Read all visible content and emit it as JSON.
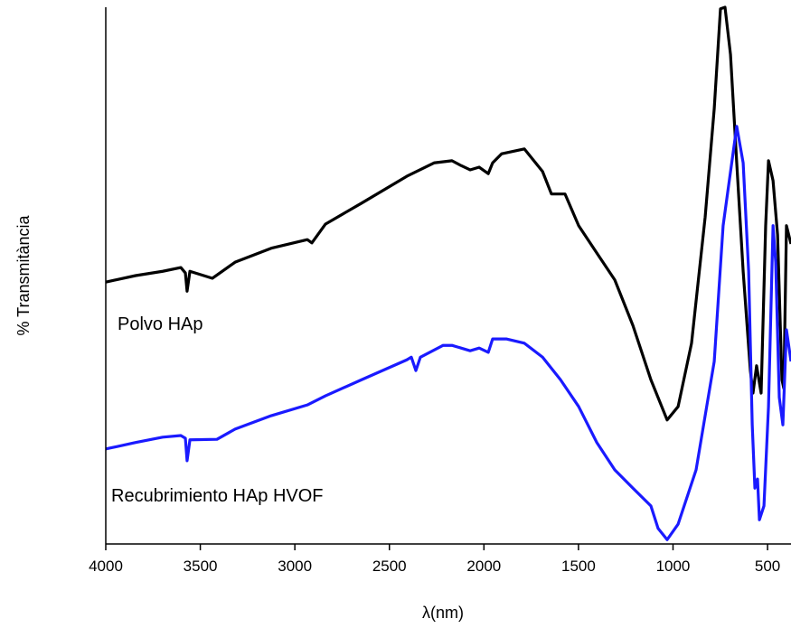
{
  "chart_data": {
    "type": "line",
    "xlabel": "λ(nm)",
    "ylabel": "% Transmitància",
    "xlim": [
      4000,
      376
    ],
    "ylim": [
      0,
      100
    ],
    "xticks": [
      4000,
      3500,
      3000,
      2500,
      2000,
      1500,
      1000,
      500
    ],
    "annotations": [
      "Polvo HAp",
      "Recubrimiento HAp HVOF"
    ],
    "series": [
      {
        "name": "Polvo HAp",
        "color": "#000000",
        "x": [
          4000,
          3842,
          3699,
          3603,
          3579,
          3570,
          3555,
          3436,
          3316,
          3125,
          2934,
          2910,
          2838,
          2647,
          2408,
          2264,
          2169,
          2121,
          2073,
          2025,
          1977,
          1954,
          1906,
          1786,
          1690,
          1643,
          1571,
          1499,
          1403,
          1308,
          1212,
          1117,
          1031,
          973,
          902,
          830,
          782,
          749,
          725,
          696,
          663,
          629,
          591,
          577,
          558,
          534,
          510,
          495,
          471,
          447,
          424,
          414,
          400,
          376
        ],
        "values": [
          48.8,
          50.0,
          50.8,
          51.5,
          50.5,
          47.1,
          50.8,
          49.5,
          52.5,
          55.1,
          56.7,
          56.1,
          59.6,
          63.5,
          68.5,
          71.0,
          71.4,
          70.5,
          69.7,
          70.2,
          69.0,
          71.0,
          72.7,
          73.6,
          69.4,
          65.2,
          65.2,
          59.3,
          54.2,
          49.2,
          40.7,
          30.6,
          23.1,
          25.6,
          37.4,
          60.9,
          81.1,
          99.7,
          100,
          91.2,
          71.0,
          50.8,
          32.3,
          28.1,
          33.2,
          28.1,
          59.3,
          71.4,
          67.7,
          57.6,
          30.6,
          29.0,
          59.3,
          55.9
        ]
      },
      {
        "name": "Recubrimiento HAp HVOF",
        "color": "#1a1aff",
        "x": [
          4000,
          3842,
          3699,
          3603,
          3579,
          3570,
          3555,
          3412,
          3316,
          3125,
          2934,
          2838,
          2647,
          2408,
          2384,
          2360,
          2336,
          2216,
          2169,
          2073,
          2025,
          1977,
          1954,
          1882,
          1786,
          1690,
          1595,
          1499,
          1403,
          1308,
          1212,
          1117,
          1079,
          1031,
          973,
          878,
          782,
          735,
          663,
          629,
          600,
          581,
          567,
          553,
          543,
          519,
          495,
          471,
          457,
          438,
          419,
          400,
          376
        ],
        "values": [
          17.7,
          18.9,
          19.9,
          20.2,
          19.7,
          15.5,
          19.4,
          19.5,
          21.4,
          23.9,
          25.9,
          27.6,
          30.6,
          34.3,
          34.8,
          32.3,
          34.8,
          37.0,
          37.0,
          36.0,
          36.5,
          35.7,
          38.2,
          38.2,
          37.4,
          34.8,
          30.6,
          25.6,
          18.9,
          13.8,
          10.4,
          7.1,
          2.9,
          0.8,
          3.7,
          13.8,
          34.0,
          59.3,
          77.8,
          71.0,
          50.8,
          22.2,
          10.4,
          12.1,
          4.5,
          7.1,
          25.6,
          59.3,
          52.5,
          27.3,
          22.2,
          39.9,
          34.0
        ]
      }
    ]
  }
}
